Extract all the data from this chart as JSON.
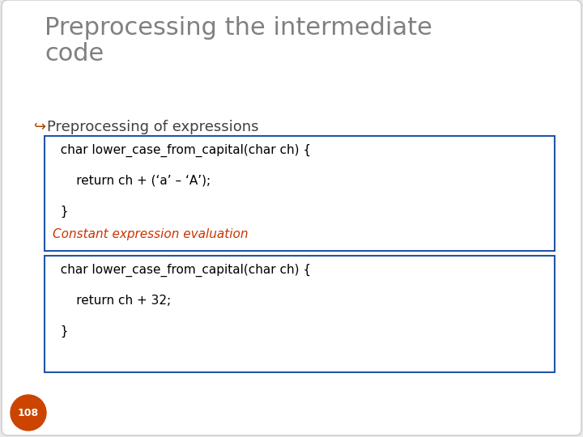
{
  "bg_color": "#e8e8e8",
  "slide_bg": "#ffffff",
  "title_text": "Preprocessing the intermediate\ncode",
  "title_color": "#808080",
  "title_fontsize": 22,
  "bullet_symbol": "↪",
  "bullet_text": "Preprocessing of expressions",
  "bullet_color": "#404040",
  "bullet_fontsize": 13,
  "box1_lines": [
    "  char lower_case_from_capital(char ch) {",
    "      return ch + (‘a’ – ‘A’);",
    "  }"
  ],
  "box1_border_color": "#2255AA",
  "box_bg": "#ffffff",
  "code_color": "#000000",
  "code_fontsize": 11,
  "arrow_text": "Constant expression evaluation",
  "arrow_color": "#CC3300",
  "arrow_fontsize": 11,
  "box2_lines": [
    "  char lower_case_from_capital(char ch) {",
    "      return ch + 32;",
    "  }"
  ],
  "box2_border_color": "#2255AA",
  "page_num": "108",
  "page_circle_color": "#CC4400",
  "page_text_color": "#ffffff",
  "page_fontsize": 9
}
